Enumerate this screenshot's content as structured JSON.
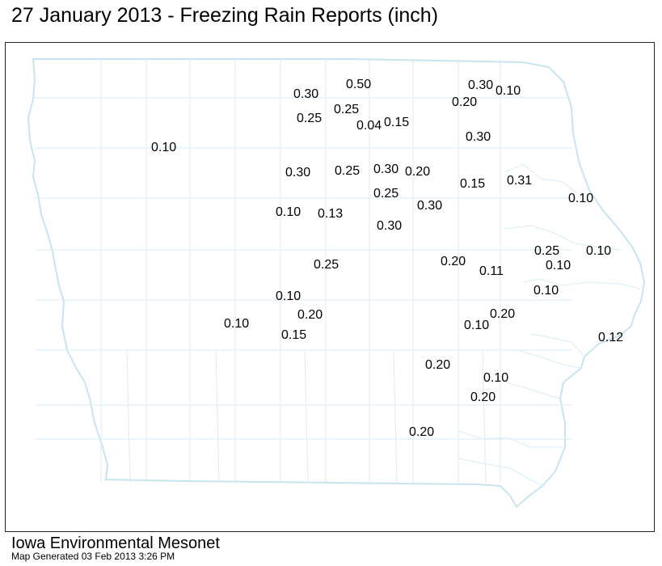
{
  "title": "27 January 2013 - Freezing Rain Reports (inch)",
  "footer": {
    "organization": "Iowa Environmental Mesonet",
    "generated": "Map Generated 03 Feb 2013 3:26 PM"
  },
  "colors": {
    "county_lines": "#d9edf5",
    "state_outline": "#c8e4f0",
    "frame": "#222222",
    "text": "#000000"
  },
  "reports": [
    {
      "value": "0.50"
    },
    {
      "value": "0.30"
    },
    {
      "value": "0.30"
    },
    {
      "value": "0.10"
    },
    {
      "value": "0.20"
    },
    {
      "value": "0.25"
    },
    {
      "value": "0.25"
    },
    {
      "value": "0.04"
    },
    {
      "value": "0.15"
    },
    {
      "value": "0.10"
    },
    {
      "value": "0.30"
    },
    {
      "value": "0.30"
    },
    {
      "value": "0.25"
    },
    {
      "value": "0.30"
    },
    {
      "value": "0.20"
    },
    {
      "value": "0.15"
    },
    {
      "value": "0.31"
    },
    {
      "value": "0.25"
    },
    {
      "value": "0.10"
    },
    {
      "value": "0.10"
    },
    {
      "value": "0.13"
    },
    {
      "value": "0.30"
    },
    {
      "value": "0.30"
    },
    {
      "value": "0.25"
    },
    {
      "value": "0.10"
    },
    {
      "value": "0.20"
    },
    {
      "value": "0.11"
    },
    {
      "value": "0.10"
    },
    {
      "value": "0.25"
    },
    {
      "value": "0.10"
    },
    {
      "value": "0.10"
    },
    {
      "value": "0.10"
    },
    {
      "value": "0.20"
    },
    {
      "value": "0.10"
    },
    {
      "value": "0.20"
    },
    {
      "value": "0.15"
    },
    {
      "value": "0.12"
    },
    {
      "value": "0.20"
    },
    {
      "value": "0.10"
    },
    {
      "value": "0.20"
    },
    {
      "value": "0.20"
    }
  ]
}
